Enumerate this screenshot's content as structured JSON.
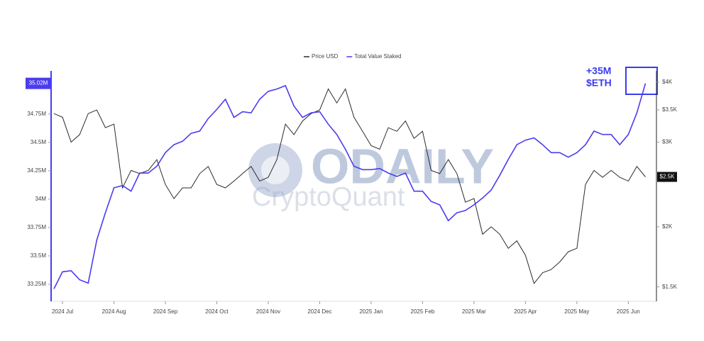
{
  "chart_data": {
    "type": "line",
    "legend": "top",
    "categories": [
      null,
      "2024 Jul",
      null,
      null,
      null,
      null,
      null,
      "2024 Aug",
      null,
      null,
      null,
      null,
      null,
      "2024 Sep",
      null,
      null,
      null,
      null,
      null,
      "2024 Oct",
      null,
      null,
      null,
      null,
      null,
      "2024 Nov",
      null,
      null,
      null,
      null,
      null,
      "2024 Dec",
      null,
      null,
      null,
      null,
      null,
      "2025 Jan",
      null,
      null,
      null,
      null,
      null,
      "2025 Feb",
      null,
      null,
      null,
      null,
      null,
      "2025 Mar",
      null,
      null,
      null,
      null,
      null,
      "2025 Apr",
      null,
      null,
      null,
      null,
      null,
      "2025 May",
      null,
      null,
      null,
      null,
      null,
      "2025 Jun",
      null,
      null
    ],
    "series": [
      {
        "name": "Price USD",
        "color": "#2b2b2b",
        "axis": "y2",
        "values": [
          3440,
          3380,
          3000,
          3110,
          3440,
          3500,
          3215,
          3270,
          2410,
          2620,
          2580,
          2620,
          2760,
          2450,
          2290,
          2410,
          2410,
          2580,
          2670,
          2450,
          2410,
          2490,
          2580,
          2670,
          2490,
          2535,
          2760,
          3270,
          3110,
          3320,
          3440,
          3500,
          3870,
          3620,
          3870,
          3380,
          3160,
          2950,
          2900,
          3215,
          3160,
          3320,
          3055,
          3160,
          2620,
          2580,
          2760,
          2580,
          2250,
          2290,
          1930,
          2000,
          1930,
          1805,
          1870,
          1745,
          1525,
          1605,
          1630,
          1690,
          1775,
          1805,
          2450,
          2620,
          2535,
          2620,
          2535,
          2490,
          2670,
          2540
        ]
      },
      {
        "name": "Total Value Staked",
        "color": "#4b3cf0",
        "values": [
          33.21,
          33.36,
          33.37,
          33.29,
          33.26,
          33.64,
          33.88,
          34.1,
          34.12,
          34.07,
          34.23,
          34.23,
          34.29,
          34.41,
          34.48,
          34.51,
          34.58,
          34.6,
          34.71,
          34.79,
          34.88,
          34.72,
          34.77,
          34.76,
          34.88,
          34.95,
          34.97,
          35.0,
          34.82,
          34.72,
          34.76,
          34.77,
          34.66,
          34.57,
          34.44,
          34.29,
          34.26,
          34.26,
          34.27,
          34.23,
          34.2,
          34.23,
          34.07,
          34.07,
          33.98,
          33.95,
          33.81,
          33.88,
          33.9,
          33.95,
          34.01,
          34.08,
          34.21,
          34.35,
          34.48,
          34.52,
          34.54,
          34.48,
          34.41,
          34.41,
          34.37,
          34.41,
          34.48,
          34.6,
          34.57,
          34.57,
          34.48,
          34.57,
          34.76,
          35.02
        ]
      }
    ],
    "ylim": [
      33.1,
      35.13
    ],
    "yticks": [
      {
        "value": 33.25,
        "label": "33.25M"
      },
      {
        "value": 33.5,
        "label": "33.5M"
      },
      {
        "value": 33.75,
        "label": "33.75M"
      },
      {
        "value": 34,
        "label": "34M"
      },
      {
        "value": 34.25,
        "label": "34.25M"
      },
      {
        "value": 34.5,
        "label": "34.5M"
      },
      {
        "value": 34.75,
        "label": "34.75M"
      }
    ],
    "y_marker": {
      "value": 35.02,
      "label": "35.02M"
    },
    "y2lim": [
      1400,
      4220
    ],
    "y2log": true,
    "y2ticks": [
      {
        "value": 1500,
        "label": "$1.5K"
      },
      {
        "value": 2000,
        "label": "$2K"
      },
      {
        "value": 2500,
        "label": "$2.5K"
      },
      {
        "value": 3000,
        "label": "$3K"
      },
      {
        "value": 3500,
        "label": "$3.5K"
      },
      {
        "value": 4000,
        "label": "$4K"
      }
    ],
    "y2_marker": {
      "value": 2540,
      "label": "$2.5K"
    },
    "annotation": [
      "+35M",
      "$ETH"
    ],
    "watermark": [
      "ODAILY",
      "CryptoQuant"
    ]
  }
}
